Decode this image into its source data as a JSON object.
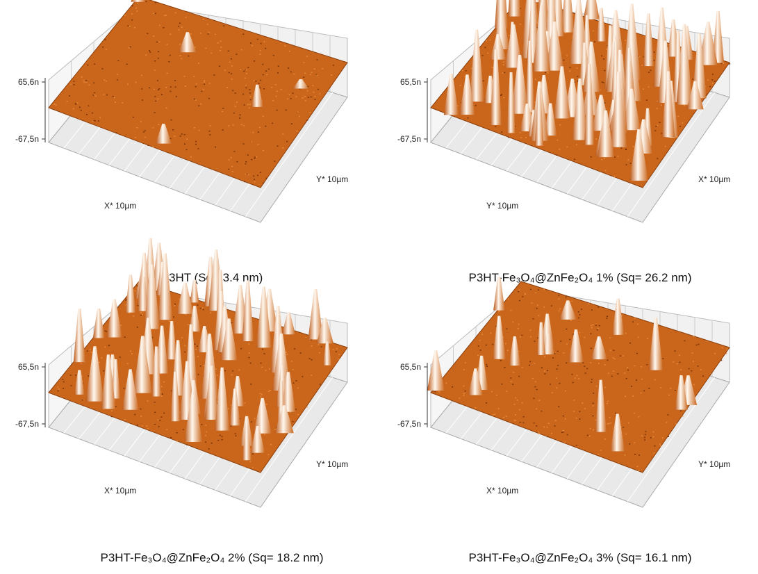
{
  "panels": [
    {
      "z_max_label": "65,6n",
      "z_min_label": "-67,5n",
      "front_axis_label": "X* 10µm",
      "side_axis_label": "Y* 10µm",
      "caption": "P3HT (Sq= 3.4 nm)"
    },
    {
      "z_max_label": "65,5n",
      "z_min_label": "-67,5n",
      "front_axis_label": "Y* 10µm",
      "side_axis_label": "X* 10µm",
      "caption": "P3HT-Fe₃O₄@ZnFe₂O₄ 1% (Sq= 26.2 nm)"
    },
    {
      "z_max_label": "65,5n",
      "z_min_label": "-67,5n",
      "front_axis_label": "X* 10µm",
      "side_axis_label": "Y* 10µm",
      "caption": "P3HT-Fe₃O₄@ZnFe₂O₄ 2% (Sq= 18.2 nm)"
    },
    {
      "z_max_label": "65,5n",
      "z_min_label": "-67,5n",
      "front_axis_label": "X* 10µm",
      "side_axis_label": "Y* 10µm",
      "caption": "P3HT-Fe₃O₄@ZnFe₂O₄ 3% (Sq= 16.1 nm)"
    }
  ]
}
